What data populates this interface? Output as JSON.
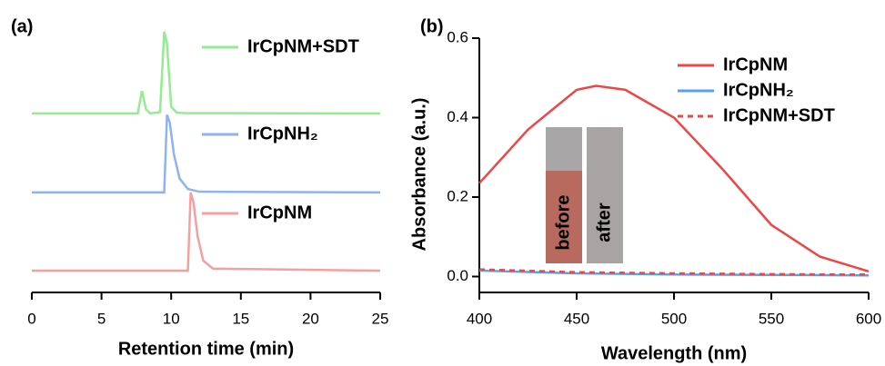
{
  "chart_data": [
    {
      "type": "line",
      "panel_label": "(a)",
      "xlabel": "Retention time (min)",
      "xlim": [
        0,
        25
      ],
      "xticks": [
        0,
        5,
        10,
        15,
        20,
        25
      ],
      "ylim": [
        0,
        10
      ],
      "series": [
        {
          "name": "IrCpNM+SDT",
          "color": "#90ee90",
          "x": [
            0,
            7.6,
            7.9,
            8.2,
            8.5,
            9.2,
            9.5,
            9.7,
            10.0,
            10.4,
            11,
            25
          ],
          "values": [
            6.75,
            6.75,
            7.6,
            6.9,
            6.75,
            6.8,
            9.83,
            9.4,
            7.0,
            6.78,
            6.76,
            6.75
          ]
        },
        {
          "name": "IrCpNH₂",
          "color": "#8fb3f0",
          "x": [
            0,
            9.5,
            9.7,
            9.9,
            10.2,
            10.6,
            11.2,
            12,
            25
          ],
          "values": [
            3.77,
            3.77,
            6.7,
            6.4,
            5.2,
            4.3,
            3.9,
            3.8,
            3.77
          ]
        },
        {
          "name": "IrCpNM",
          "color": "#f4a0a0",
          "x": [
            0,
            11.2,
            11.4,
            11.6,
            11.9,
            12.3,
            13,
            25
          ],
          "values": [
            0.82,
            0.82,
            3.77,
            3.4,
            2.1,
            1.2,
            0.9,
            0.82
          ]
        }
      ]
    },
    {
      "type": "line",
      "panel_label": "(b)",
      "xlabel": "Wavelength (nm)",
      "ylabel": "Absorbance (a.u.)",
      "xlim": [
        400,
        600
      ],
      "xticks": [
        400,
        450,
        500,
        550,
        600
      ],
      "ylim": [
        -0.04,
        0.6
      ],
      "yticks": [
        {
          "value": 0,
          "label": "0.0"
        },
        0.2,
        0.4,
        0.6
      ],
      "inset_labels": [
        "before",
        "after"
      ],
      "series": [
        {
          "name": "IrCpNM",
          "color": "#f04545",
          "dash": false,
          "x": [
            400,
            425,
            450,
            460,
            475,
            500,
            525,
            550,
            575,
            600
          ],
          "values": [
            0.235,
            0.37,
            0.47,
            0.48,
            0.47,
            0.4,
            0.27,
            0.13,
            0.05,
            0.013
          ]
        },
        {
          "name": "IrCpNH₂",
          "color": "#5aa0f0",
          "dash": false,
          "x": [
            400,
            450,
            500,
            550,
            600
          ],
          "values": [
            0.015,
            0.008,
            0.005,
            0.004,
            0.003
          ]
        },
        {
          "name": "IrCpNM+SDT",
          "color": "#f04545",
          "dash": true,
          "x": [
            400,
            450,
            500,
            550,
            600
          ],
          "values": [
            0.018,
            0.011,
            0.008,
            0.006,
            0.005
          ]
        }
      ]
    }
  ]
}
